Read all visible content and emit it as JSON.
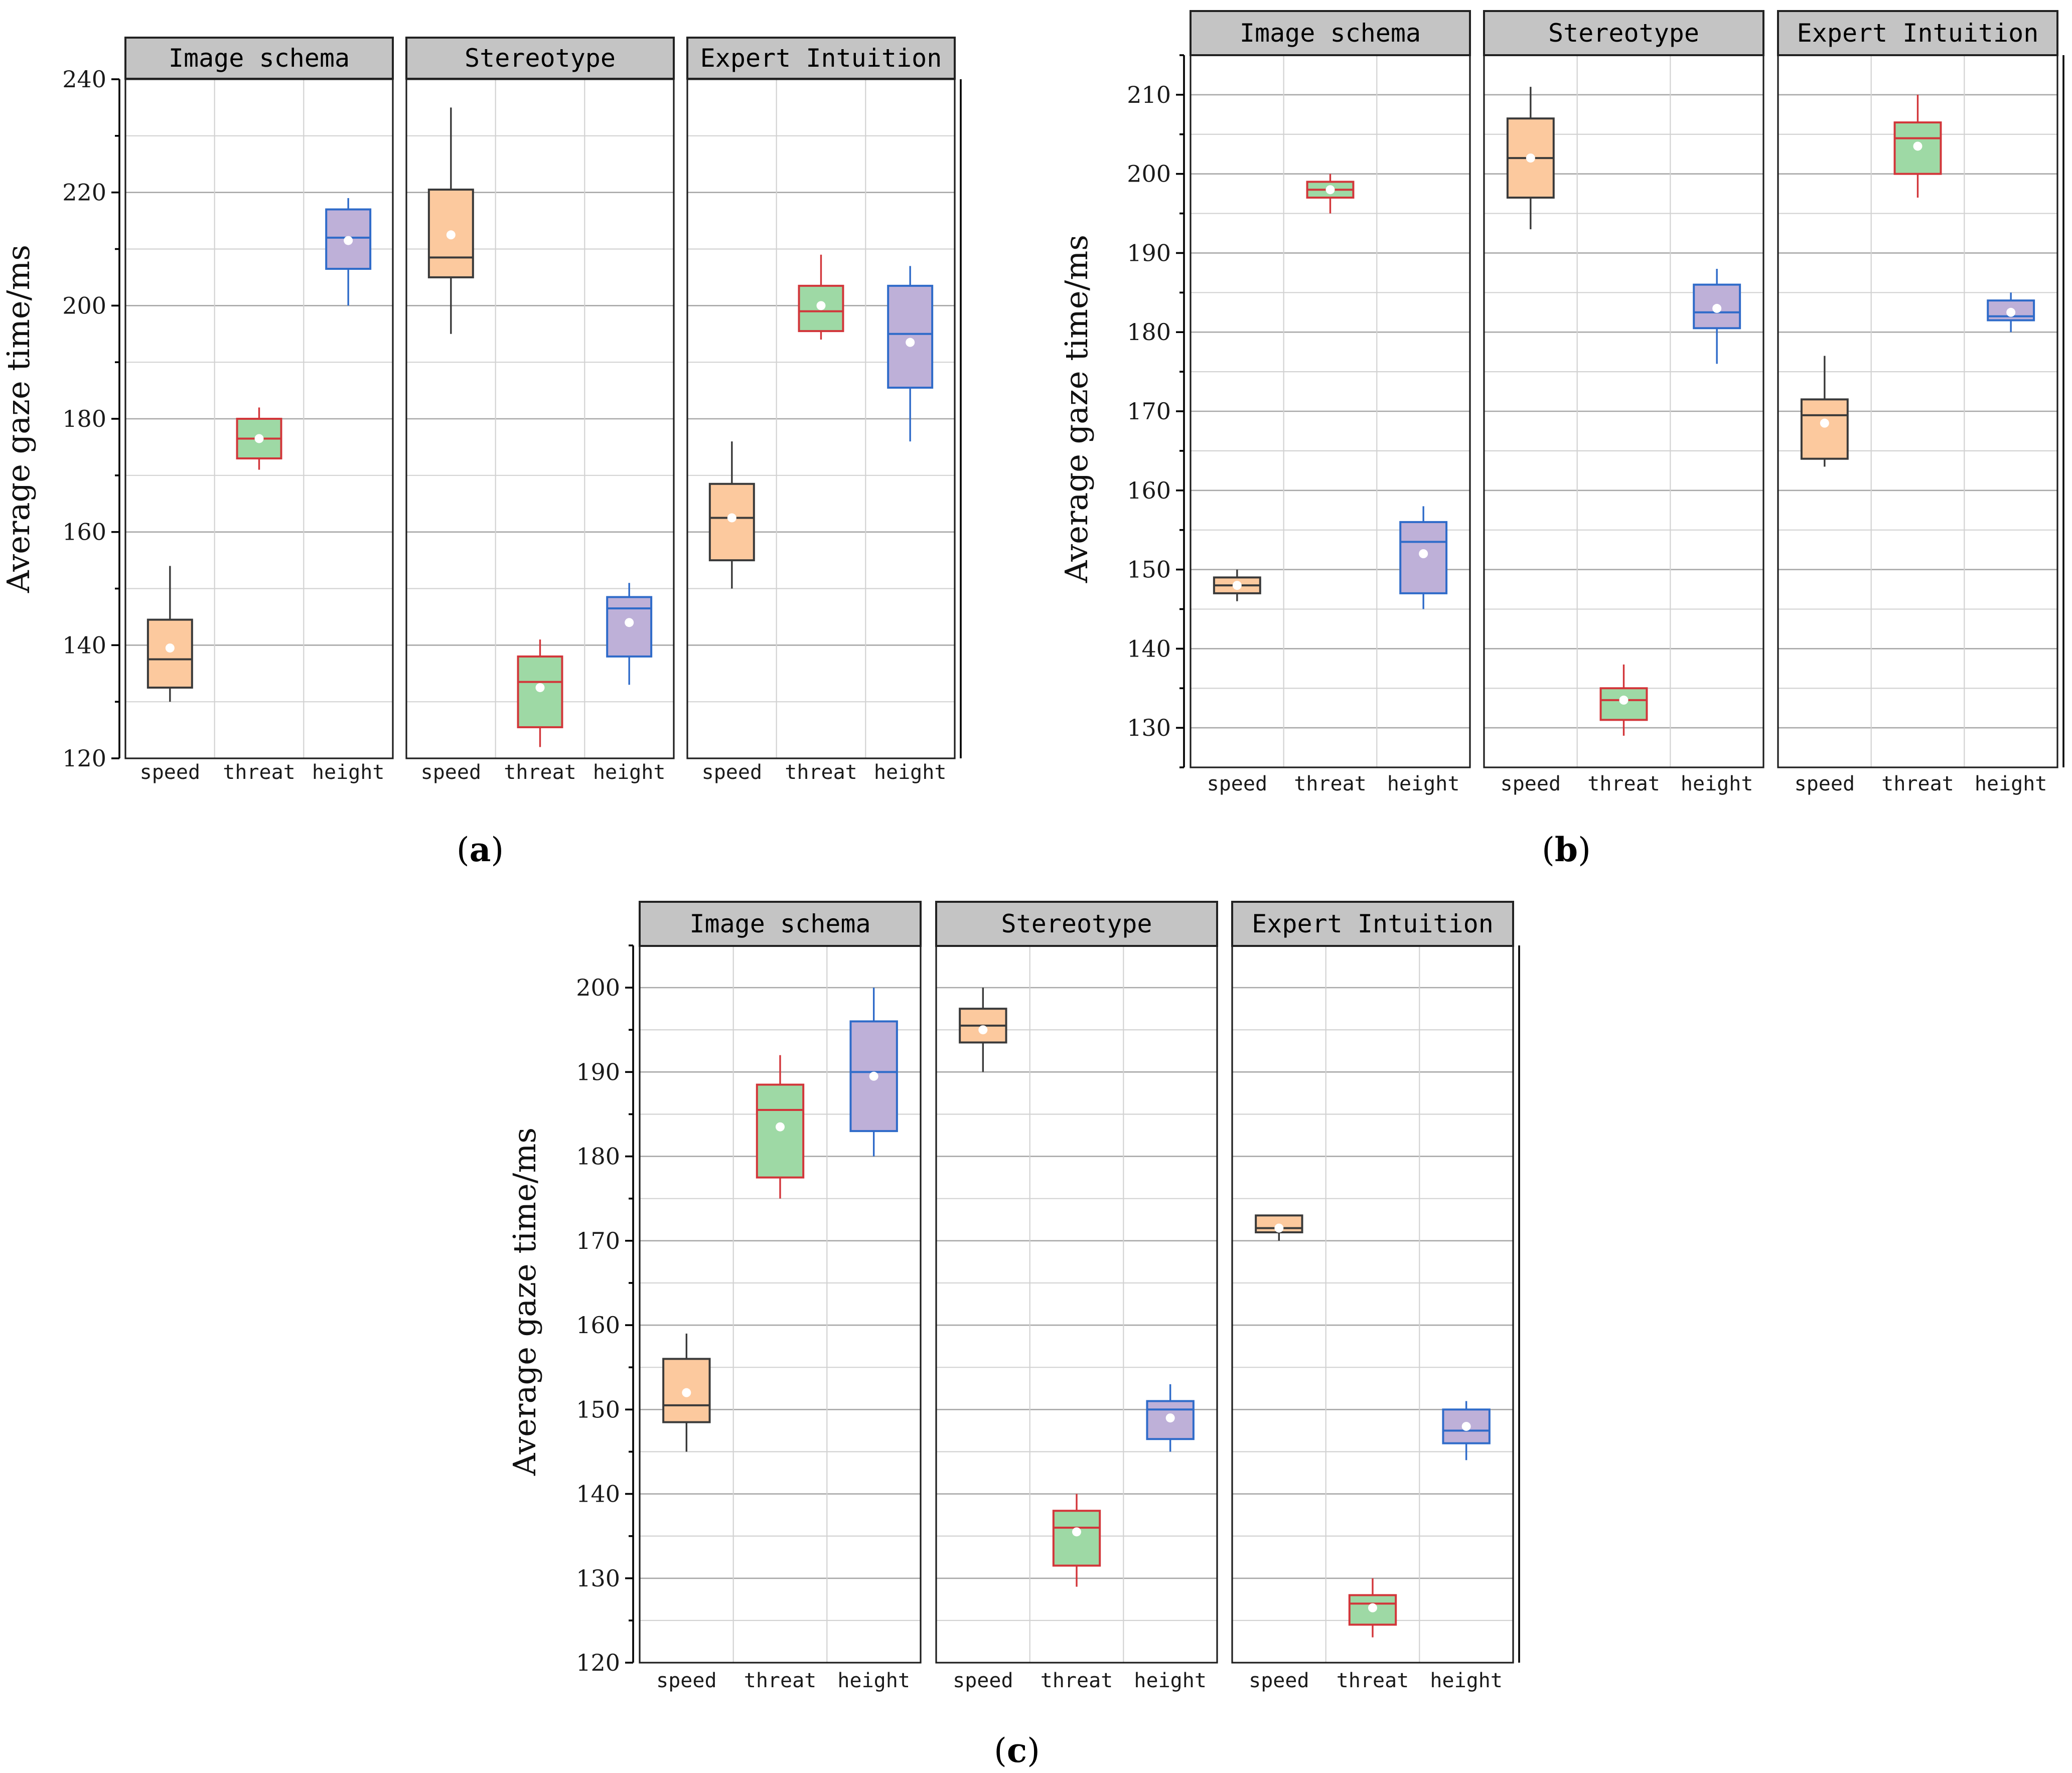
{
  "figure": {
    "captions": [
      "a",
      "b",
      "c"
    ]
  },
  "styles": {
    "speed": {
      "fill": "#FCC99E",
      "stroke": "#3A3A3A"
    },
    "threat": {
      "fill": "#9ED9A5",
      "stroke": "#D2363A"
    },
    "height": {
      "fill": "#BEB0D8",
      "stroke": "#2F6BC9"
    },
    "mean_marker": "#ffffff"
  },
  "chart_data": [
    {
      "type": "boxplot",
      "caption": "a",
      "ylabel": "Average gaze time/ms",
      "ylim": [
        120,
        240
      ],
      "yticks": [
        120,
        140,
        160,
        180,
        200,
        220,
        240
      ],
      "categories": [
        "speed",
        "threat",
        "height"
      ],
      "facets": [
        {
          "name": "Image schema",
          "boxes": [
            {
              "cat": "speed",
              "min": 130,
              "q1": 132.5,
              "median": 137.5,
              "q3": 144.5,
              "max": 154,
              "mean": 139.5
            },
            {
              "cat": "threat",
              "min": 171,
              "q1": 173,
              "median": 176.5,
              "q3": 180,
              "max": 182,
              "mean": 176.5
            },
            {
              "cat": "height",
              "min": 200,
              "q1": 206.5,
              "median": 212,
              "q3": 217,
              "max": 219,
              "mean": 211.5
            }
          ]
        },
        {
          "name": "Stereotype",
          "boxes": [
            {
              "cat": "speed",
              "min": 195,
              "q1": 205,
              "median": 208.5,
              "q3": 220.5,
              "max": 235,
              "mean": 212.5
            },
            {
              "cat": "threat",
              "min": 122,
              "q1": 125.5,
              "median": 133.5,
              "q3": 138,
              "max": 141,
              "mean": 132.5
            },
            {
              "cat": "height",
              "min": 133,
              "q1": 138,
              "median": 146.5,
              "q3": 148.5,
              "max": 151,
              "mean": 144
            }
          ]
        },
        {
          "name": "Expert Intuition",
          "boxes": [
            {
              "cat": "speed",
              "min": 150,
              "q1": 155,
              "median": 162.5,
              "q3": 168.5,
              "max": 176,
              "mean": 162.5
            },
            {
              "cat": "threat",
              "min": 194,
              "q1": 195.5,
              "median": 199,
              "q3": 203.5,
              "max": 209,
              "mean": 200
            },
            {
              "cat": "height",
              "min": 176,
              "q1": 185.5,
              "median": 195,
              "q3": 203.5,
              "max": 207,
              "mean": 193.5
            }
          ]
        }
      ]
    },
    {
      "type": "boxplot",
      "caption": "b",
      "ylabel": "Average gaze time/ms",
      "ylim": [
        125,
        215
      ],
      "yticks": [
        130,
        140,
        150,
        160,
        170,
        180,
        190,
        200,
        210
      ],
      "categories": [
        "speed",
        "threat",
        "height"
      ],
      "facets": [
        {
          "name": "Image schema",
          "boxes": [
            {
              "cat": "speed",
              "min": 146,
              "q1": 147,
              "median": 148,
              "q3": 149,
              "max": 150,
              "mean": 148
            },
            {
              "cat": "threat",
              "min": 195,
              "q1": 197,
              "median": 198,
              "q3": 199,
              "max": 200,
              "mean": 198
            },
            {
              "cat": "height",
              "min": 145,
              "q1": 147,
              "median": 153.5,
              "q3": 156,
              "max": 158,
              "mean": 152
            }
          ]
        },
        {
          "name": "Stereotype",
          "boxes": [
            {
              "cat": "speed",
              "min": 193,
              "q1": 197,
              "median": 202,
              "q3": 207,
              "max": 211,
              "mean": 202
            },
            {
              "cat": "threat",
              "min": 129,
              "q1": 131,
              "median": 133.5,
              "q3": 135,
              "max": 138,
              "mean": 133.5
            },
            {
              "cat": "height",
              "min": 176,
              "q1": 180.5,
              "median": 182.5,
              "q3": 186,
              "max": 188,
              "mean": 183
            }
          ]
        },
        {
          "name": "Expert Intuition",
          "boxes": [
            {
              "cat": "speed",
              "min": 163,
              "q1": 164,
              "median": 169.5,
              "q3": 171.5,
              "max": 177,
              "mean": 168.5
            },
            {
              "cat": "threat",
              "min": 197,
              "q1": 200,
              "median": 204.5,
              "q3": 206.5,
              "max": 210,
              "mean": 203.5
            },
            {
              "cat": "height",
              "min": 180,
              "q1": 181.5,
              "median": 182,
              "q3": 184,
              "max": 185,
              "mean": 182.5
            }
          ]
        }
      ]
    },
    {
      "type": "boxplot",
      "caption": "c",
      "ylabel": "Average gaze time/ms",
      "ylim": [
        120,
        205
      ],
      "yticks": [
        120,
        130,
        140,
        150,
        160,
        170,
        180,
        190,
        200
      ],
      "categories": [
        "speed",
        "threat",
        "height"
      ],
      "facets": [
        {
          "name": "Image schema",
          "boxes": [
            {
              "cat": "speed",
              "min": 145,
              "q1": 148.5,
              "median": 150.5,
              "q3": 156,
              "max": 159,
              "mean": 152
            },
            {
              "cat": "threat",
              "min": 175,
              "q1": 177.5,
              "median": 185.5,
              "q3": 188.5,
              "max": 192,
              "mean": 183.5
            },
            {
              "cat": "height",
              "min": 180,
              "q1": 183,
              "median": 190,
              "q3": 196,
              "max": 200,
              "mean": 189.5
            }
          ]
        },
        {
          "name": "Stereotype",
          "boxes": [
            {
              "cat": "speed",
              "min": 190,
              "q1": 193.5,
              "median": 195.5,
              "q3": 197.5,
              "max": 200,
              "mean": 195
            },
            {
              "cat": "threat",
              "min": 129,
              "q1": 131.5,
              "median": 136,
              "q3": 138,
              "max": 140,
              "mean": 135.5
            },
            {
              "cat": "height",
              "min": 145,
              "q1": 146.5,
              "median": 150,
              "q3": 151,
              "max": 153,
              "mean": 149
            }
          ]
        },
        {
          "name": "Expert Intuition",
          "boxes": [
            {
              "cat": "speed",
              "min": 170,
              "q1": 171,
              "median": 171.5,
              "q3": 173,
              "max": 173,
              "mean": 171.5
            },
            {
              "cat": "threat",
              "min": 123,
              "q1": 124.5,
              "median": 127,
              "q3": 128,
              "max": 130,
              "mean": 126.5
            },
            {
              "cat": "height",
              "min": 144,
              "q1": 146,
              "median": 147.5,
              "q3": 150,
              "max": 151,
              "mean": 148
            }
          ]
        }
      ]
    }
  ]
}
